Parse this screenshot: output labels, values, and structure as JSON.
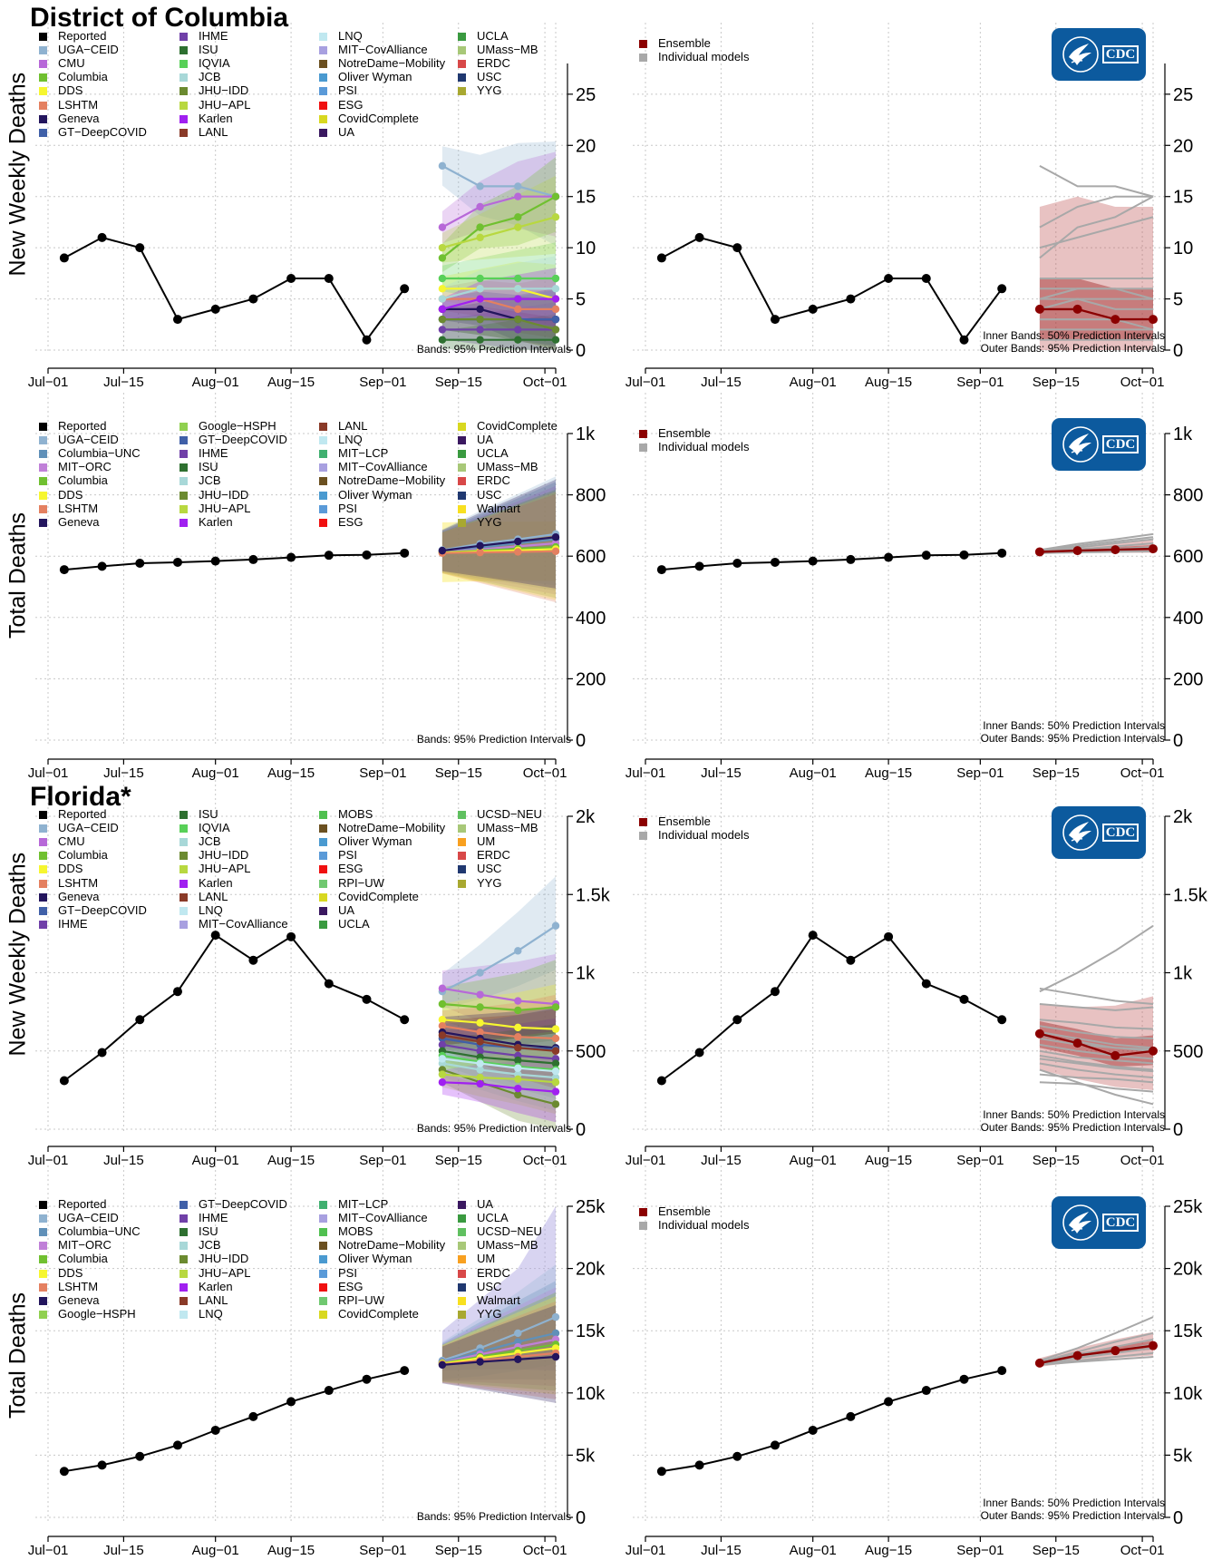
{
  "titles": [
    "District of Columbia",
    "Florida*"
  ],
  "ylabels": [
    "New Weekly Deaths",
    "Total Deaths",
    "New Weekly Deaths",
    "Total Deaths"
  ],
  "x_ticks": [
    "Jul−01",
    "Jul−15",
    "Aug−01",
    "Aug−15",
    "Sep−01",
    "Sep−15",
    "Oct−01"
  ],
  "note_left": "Bands: 95% Prediction Intervals",
  "note_right_inner": "Inner Bands: 50% Prediction Intervals",
  "note_right_outer": "Outer Bands: 95% Prediction Intervals",
  "right_legend": [
    "Ensemble",
    "Individual models"
  ],
  "cdc_logo_text": "CDC",
  "colors": {
    "reported": "#000000",
    "ensemble": "#8b0000",
    "individual": "#a8a8a8",
    "grid": "#c8c8c8",
    "band_outer": "rgba(190,80,80,0.35)",
    "band_inner": "rgba(160,40,40,0.45)"
  },
  "model_colors": {
    "Reported": "#000000",
    "UGA−CEID": "#8fb2d0",
    "CMU": "#b768d8",
    "Columbia": "#70c030",
    "DDS": "#f6f630",
    "LSHTM": "#e48060",
    "Geneva": "#23155d",
    "GT−DeepCOVID": "#4060a8",
    "IHME": "#7040a8",
    "ISU": "#2e7030",
    "IQVIA": "#58d058",
    "JCB": "#a8d8d8",
    "JHU−IDD": "#6b8a30",
    "JHU−APL": "#b8d840",
    "Karlen": "#a020f0",
    "LANL": "#8a3a28",
    "LNQ": "#c0e8f0",
    "MIT−CovAlliance": "#a8a0e0",
    "NotreDame−Mobility": "#6b5020",
    "Oliver Wyman": "#4a9ad0",
    "PSI": "#5a9ad8",
    "ESG": "#f01010",
    "CovidComplete": "#d8d820",
    "UA": "#3a1860",
    "UCLA": "#3a9a40",
    "UMass−MB": "#a8c878",
    "ERDC": "#d84848",
    "USC": "#203870",
    "YYG": "#a8a830",
    "Columbia−UNC": "#6090b8",
    "MIT−ORC": "#c080d8",
    "Google−HSPH": "#90d050",
    "MIT−LCP": "#40b070",
    "Walmart": "#f8e020",
    "MOBS": "#50c050",
    "RPI−UW": "#70c870",
    "UCSD−NEU": "#60c060",
    "UM": "#f8a020"
  },
  "legends": [
    [
      [
        "Reported",
        "UGA−CEID",
        "CMU",
        "Columbia",
        "DDS",
        "LSHTM",
        "Geneva",
        "GT−DeepCOVID"
      ],
      [
        "IHME",
        "ISU",
        "IQVIA",
        "JCB",
        "JHU−IDD",
        "JHU−APL",
        "Karlen",
        "LANL"
      ],
      [
        "LNQ",
        "MIT−CovAlliance",
        "NotreDame−Mobility",
        "Oliver Wyman",
        "PSI",
        "ESG",
        "CovidComplete",
        "UA"
      ],
      [
        "UCLA",
        "UMass−MB",
        "ERDC",
        "USC",
        "YYG"
      ]
    ],
    [
      [
        "Reported",
        "UGA−CEID",
        "Columbia−UNC",
        "MIT−ORC",
        "Columbia",
        "DDS",
        "LSHTM",
        "Geneva"
      ],
      [
        "Google−HSPH",
        "GT−DeepCOVID",
        "IHME",
        "ISU",
        "JCB",
        "JHU−IDD",
        "JHU−APL",
        "Karlen"
      ],
      [
        "LANL",
        "LNQ",
        "MIT−LCP",
        "MIT−CovAlliance",
        "NotreDame−Mobility",
        "Oliver Wyman",
        "PSI",
        "ESG"
      ],
      [
        "CovidComplete",
        "UA",
        "UCLA",
        "UMass−MB",
        "ERDC",
        "USC",
        "Walmart",
        "YYG"
      ]
    ],
    [
      [
        "Reported",
        "UGA−CEID",
        "CMU",
        "Columbia",
        "DDS",
        "LSHTM",
        "Geneva",
        "GT−DeepCOVID",
        "IHME"
      ],
      [
        "ISU",
        "IQVIA",
        "JCB",
        "JHU−IDD",
        "JHU−APL",
        "Karlen",
        "LANL",
        "LNQ",
        "MIT−CovAlliance"
      ],
      [
        "MOBS",
        "NotreDame−Mobility",
        "Oliver Wyman",
        "PSI",
        "ESG",
        "RPI−UW",
        "CovidComplete",
        "UA",
        "UCLA"
      ],
      [
        "UCSD−NEU",
        "UMass−MB",
        "UM",
        "ERDC",
        "USC",
        "YYG"
      ]
    ],
    [
      [
        "Reported",
        "UGA−CEID",
        "Columbia−UNC",
        "MIT−ORC",
        "Columbia",
        "DDS",
        "LSHTM",
        "Geneva",
        "Google−HSPH"
      ],
      [
        "GT−DeepCOVID",
        "IHME",
        "ISU",
        "JCB",
        "JHU−IDD",
        "JHU−APL",
        "Karlen",
        "LANL",
        "LNQ"
      ],
      [
        "MIT−LCP",
        "MIT−CovAlliance",
        "MOBS",
        "NotreDame−Mobility",
        "Oliver Wyman",
        "PSI",
        "ESG",
        "RPI−UW",
        "CovidComplete"
      ],
      [
        "UA",
        "UCLA",
        "UCSD−NEU",
        "UMass−MB",
        "UM",
        "ERDC",
        "USC",
        "Walmart",
        "YYG"
      ]
    ]
  ],
  "chart_data": [
    {
      "type": "line",
      "region": "District of Columbia",
      "ylabel": "New Weekly Deaths",
      "x_reported": [
        "2020-07-04",
        "2020-07-11",
        "2020-07-18",
        "2020-07-25",
        "2020-08-01",
        "2020-08-08",
        "2020-08-15",
        "2020-08-22",
        "2020-08-29",
        "2020-09-05"
      ],
      "reported": [
        9,
        11,
        10,
        3,
        4,
        5,
        7,
        7,
        1,
        6
      ],
      "x_forecast": [
        "2020-09-12",
        "2020-09-19",
        "2020-09-26",
        "2020-10-03"
      ],
      "ensemble": [
        4,
        4,
        3,
        3
      ],
      "ensemble_50": {
        "lower": [
          1,
          1,
          1,
          1
        ],
        "upper": [
          7,
          7,
          6,
          6
        ]
      },
      "ensemble_95": {
        "lower": [
          0,
          0,
          0,
          0
        ],
        "upper": [
          14,
          15,
          14,
          14
        ]
      },
      "individual_models": [
        [
          18,
          16,
          16,
          15
        ],
        [
          12,
          14,
          15,
          15
        ],
        [
          9,
          12,
          13,
          15
        ],
        [
          6,
          6,
          6,
          5
        ],
        [
          5,
          5,
          4,
          4
        ],
        [
          4,
          4,
          3,
          3
        ],
        [
          3,
          3,
          3,
          3
        ],
        [
          2,
          2,
          2,
          2
        ],
        [
          1,
          1,
          1,
          1
        ],
        [
          7,
          7,
          7,
          7
        ],
        [
          5,
          6,
          6,
          6
        ],
        [
          3,
          3,
          3,
          2
        ],
        [
          10,
          11,
          12,
          13
        ],
        [
          4,
          5,
          5,
          5
        ]
      ],
      "ylim": [
        0,
        28
      ],
      "yticks": [
        "0",
        "5",
        "10",
        "15",
        "20",
        "25"
      ],
      "ytick_values": [
        0,
        5,
        10,
        15,
        20,
        25
      ]
    },
    {
      "type": "line",
      "region": "District of Columbia",
      "ylabel": "Total Deaths",
      "x_reported": [
        "2020-07-04",
        "2020-07-11",
        "2020-07-18",
        "2020-07-25",
        "2020-08-01",
        "2020-08-08",
        "2020-08-15",
        "2020-08-22",
        "2020-08-29",
        "2020-09-05"
      ],
      "reported": [
        556,
        567,
        577,
        580,
        584,
        589,
        596,
        603,
        604,
        610
      ],
      "x_forecast": [
        "2020-09-12",
        "2020-09-19",
        "2020-09-26",
        "2020-10-03"
      ],
      "ensemble": [
        614,
        618,
        621,
        624
      ],
      "ensemble_50": {
        "lower": [
          611,
          612,
          613,
          614
        ],
        "upper": [
          618,
          624,
          630,
          636
        ]
      },
      "ensemble_95": {
        "lower": [
          610,
          610,
          611,
          611
        ],
        "upper": [
          622,
          632,
          642,
          652
        ]
      },
      "individual_models": [
        [
          620,
          640,
          655,
          672
        ],
        [
          616,
          628,
          642,
          655
        ],
        [
          614,
          622,
          632,
          642
        ],
        [
          612,
          618,
          624,
          630
        ],
        [
          611,
          615,
          619,
          623
        ],
        [
          610,
          612,
          614,
          616
        ],
        [
          618,
          634,
          648,
          662
        ]
      ],
      "model_band_95": {
        "lower": [
          515,
          518,
          520,
          520
        ],
        "upper": [
          710,
          712,
          712,
          714
        ]
      },
      "ylim": [
        0,
        1000
      ],
      "yticks": [
        "0",
        "200",
        "400",
        "600",
        "800",
        "1k"
      ],
      "ytick_values": [
        0,
        200,
        400,
        600,
        800,
        1000
      ]
    },
    {
      "type": "line",
      "region": "Florida*",
      "ylabel": "New Weekly Deaths",
      "x_reported": [
        "2020-07-04",
        "2020-07-11",
        "2020-07-18",
        "2020-07-25",
        "2020-08-01",
        "2020-08-08",
        "2020-08-15",
        "2020-08-22",
        "2020-08-29",
        "2020-09-05"
      ],
      "reported": [
        310,
        490,
        700,
        880,
        1240,
        1080,
        1230,
        930,
        830,
        700
      ],
      "x_forecast": [
        "2020-09-12",
        "2020-09-19",
        "2020-09-26",
        "2020-10-03"
      ],
      "ensemble": [
        610,
        550,
        470,
        500
      ],
      "ensemble_50": {
        "lower": [
          520,
          470,
          400,
          410
        ],
        "upper": [
          690,
          640,
          580,
          600
        ]
      },
      "ensemble_95": {
        "lower": [
          380,
          320,
          270,
          250
        ],
        "upper": [
          800,
          780,
          790,
          850
        ]
      },
      "individual_models": [
        [
          880,
          1000,
          1140,
          1300
        ],
        [
          900,
          860,
          820,
          800
        ],
        [
          800,
          780,
          760,
          780
        ],
        [
          700,
          680,
          650,
          640
        ],
        [
          660,
          620,
          590,
          580
        ],
        [
          620,
          580,
          540,
          520
        ],
        [
          580,
          540,
          520,
          510
        ],
        [
          540,
          500,
          470,
          450
        ],
        [
          500,
          460,
          440,
          420
        ],
        [
          470,
          430,
          400,
          380
        ],
        [
          420,
          380,
          350,
          330
        ],
        [
          380,
          300,
          220,
          160
        ],
        [
          350,
          330,
          320,
          300
        ],
        [
          300,
          290,
          260,
          240
        ],
        [
          600,
          560,
          520,
          500
        ],
        [
          450,
          420,
          390,
          370
        ]
      ],
      "ylim": [
        0,
        2000
      ],
      "yticks": [
        "0",
        "500",
        "1k",
        "1.5k",
        "2k"
      ],
      "ytick_values": [
        0,
        500,
        1000,
        1500,
        2000
      ]
    },
    {
      "type": "line",
      "region": "Florida*",
      "ylabel": "Total Deaths",
      "x_reported": [
        "2020-07-04",
        "2020-07-11",
        "2020-07-18",
        "2020-07-25",
        "2020-08-01",
        "2020-08-08",
        "2020-08-15",
        "2020-08-22",
        "2020-08-29",
        "2020-09-05"
      ],
      "reported": [
        3700,
        4200,
        4900,
        5800,
        7000,
        8100,
        9300,
        10200,
        11100,
        11800
      ],
      "x_forecast": [
        "2020-09-12",
        "2020-09-19",
        "2020-09-26",
        "2020-10-03"
      ],
      "ensemble": [
        12400,
        13000,
        13400,
        13800
      ],
      "ensemble_50": {
        "lower": [
          12300,
          12800,
          13200,
          13500
        ],
        "upper": [
          12500,
          13200,
          13700,
          14200
        ]
      },
      "ensemble_95": {
        "lower": [
          12100,
          12500,
          12800,
          13000
        ],
        "upper": [
          12800,
          13600,
          14300,
          14900
        ]
      },
      "individual_models": [
        [
          12600,
          13600,
          14800,
          16100
        ],
        [
          12500,
          13300,
          14100,
          14800
        ],
        [
          12450,
          13100,
          13700,
          14300
        ],
        [
          12400,
          12900,
          13400,
          13900
        ],
        [
          12350,
          12800,
          13200,
          13600
        ],
        [
          12300,
          12600,
          12900,
          13200
        ],
        [
          12250,
          12500,
          12700,
          12900
        ]
      ],
      "model_band_95": {
        "lower": [
          11800,
          11900,
          11900,
          11800
        ],
        "upper": [
          15000,
          17500,
          20000,
          25000
        ]
      },
      "ylim": [
        0,
        25000
      ],
      "yticks": [
        "0",
        "5k",
        "10k",
        "15k",
        "20k",
        "25k"
      ],
      "ytick_values": [
        0,
        5000,
        10000,
        15000,
        20000,
        25000
      ]
    }
  ]
}
